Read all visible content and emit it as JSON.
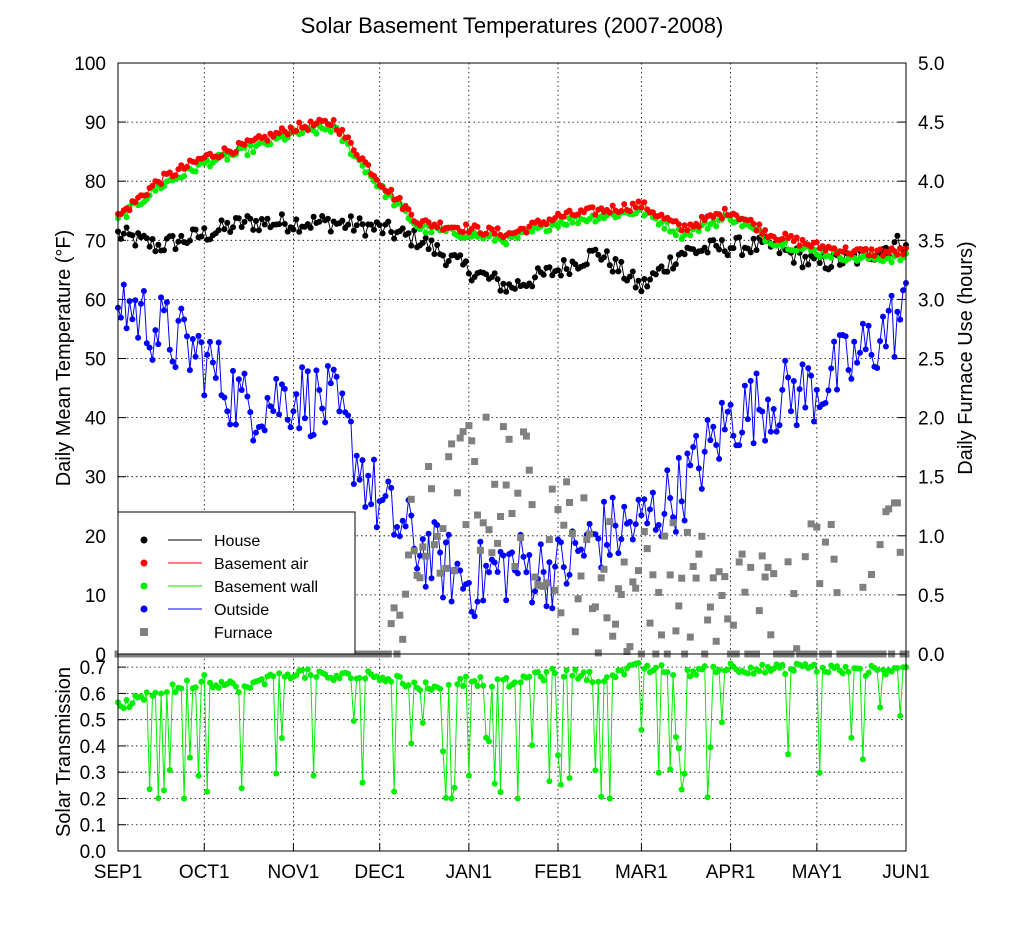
{
  "chart_data": [
    {
      "type": "line",
      "title": "Solar Basement Temperatures (2007-2008)",
      "ylabel": "Daily Mean Temperature (°F)",
      "y2label": "Daily Furnace Use (hours)",
      "xlim": [
        "2007-09-01",
        "2008-06-01"
      ],
      "ylim": [
        0,
        100
      ],
      "y2lim": [
        0,
        5
      ],
      "yticks": [
        "0",
        "10",
        "20",
        "30",
        "40",
        "50",
        "60",
        "70",
        "80",
        "90",
        "100"
      ],
      "y2ticks": [
        "0.0",
        "0.5",
        "1.0",
        "1.5",
        "2.0",
        "2.5",
        "3.0",
        "3.5",
        "4.0",
        "4.5",
        "5.0"
      ],
      "grid": true,
      "legend_position": "bottom-left",
      "x_knots": [
        "2007-09-01",
        "2007-09-15",
        "2007-10-01",
        "2007-10-15",
        "2007-11-01",
        "2007-11-15",
        "2007-12-01",
        "2007-12-15",
        "2008-01-01",
        "2008-01-15",
        "2008-02-01",
        "2008-02-15",
        "2008-03-01",
        "2008-03-15",
        "2008-04-01",
        "2008-04-15",
        "2008-05-01",
        "2008-05-15",
        "2008-06-01"
      ],
      "series": [
        {
          "name": "House",
          "color": "#000000",
          "axis": "left",
          "marker": "circle",
          "values": [
            71,
            69,
            71,
            73,
            73,
            73,
            72,
            70,
            65,
            62,
            65,
            68,
            62,
            68,
            69,
            69,
            66,
            67,
            70
          ]
        },
        {
          "name": "Basement air",
          "color": "#ff0000",
          "axis": "left",
          "marker": "circle",
          "values": [
            74,
            80,
            84,
            86,
            89,
            90,
            80,
            73,
            72,
            71,
            74,
            75,
            76,
            72,
            75,
            71,
            69,
            68,
            68
          ]
        },
        {
          "name": "Basement wall",
          "color": "#00ee00",
          "axis": "left",
          "marker": "circle",
          "values": [
            73.5,
            79,
            83,
            85,
            88,
            89,
            79,
            72,
            71,
            70,
            73,
            74,
            75,
            71,
            74,
            70,
            68,
            67,
            67
          ]
        },
        {
          "name": "Outside",
          "color": "#0000ff",
          "axis": "left",
          "marker": "circle",
          "values": [
            60,
            55,
            50,
            42,
            44,
            42,
            25,
            18,
            12,
            15,
            14,
            20,
            22,
            28,
            40,
            43,
            45,
            50,
            58
          ]
        },
        {
          "name": "Furnace",
          "color": "#808080",
          "axis": "right",
          "marker": "square",
          "line": false,
          "values": [
            0,
            0,
            0,
            0,
            0,
            0,
            0,
            0.9,
            1.4,
            1.4,
            1.0,
            0.6,
            0.5,
            0.5,
            0.3,
            0.3,
            0.6,
            0.4,
            0.9
          ]
        }
      ]
    },
    {
      "type": "line",
      "ylabel": "Solar Transmission",
      "ylim": [
        0,
        0.75
      ],
      "yticks": [
        "0.0",
        "0.1",
        "0.2",
        "0.3",
        "0.4",
        "0.5",
        "0.6",
        "0.7"
      ],
      "x_tick_labels": [
        "SEP1",
        "OCT1",
        "NOV1",
        "DEC1",
        "JAN1",
        "FEB1",
        "MAR1",
        "APR1",
        "MAY1",
        "JUN1"
      ],
      "grid": true,
      "series": [
        {
          "name": "Solar Transmission",
          "color": "#00ee00",
          "marker": "circle",
          "values": [
            0.55,
            0.6,
            0.65,
            0.62,
            0.68,
            0.66,
            0.67,
            0.62,
            0.65,
            0.64,
            0.68,
            0.66,
            0.7,
            0.68,
            0.7,
            0.69,
            0.7,
            0.68,
            0.7
          ]
        }
      ]
    }
  ]
}
